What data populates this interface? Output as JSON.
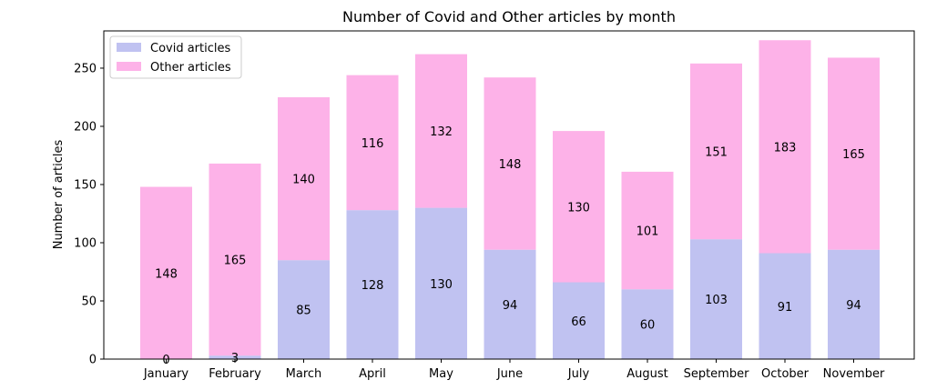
{
  "chart_data": {
    "type": "bar",
    "stacked": true,
    "title": "Number of Covid and Other articles by month",
    "xlabel": "",
    "ylabel": "Number of articles",
    "ylim": [
      0,
      282
    ],
    "yticks": [
      0,
      50,
      100,
      150,
      200,
      250
    ],
    "categories": [
      "January",
      "February",
      "March",
      "April",
      "May",
      "June",
      "July",
      "August",
      "September",
      "October",
      "November"
    ],
    "series": [
      {
        "name": "Covid articles",
        "color": "#c0c2f1",
        "values": [
          0,
          3,
          85,
          128,
          130,
          94,
          66,
          60,
          103,
          91,
          94
        ]
      },
      {
        "name": "Other articles",
        "color": "#fdb2e8",
        "values": [
          148,
          165,
          140,
          116,
          132,
          148,
          130,
          101,
          151,
          183,
          165
        ]
      }
    ],
    "legend_position": "top-left",
    "grid": false
  }
}
